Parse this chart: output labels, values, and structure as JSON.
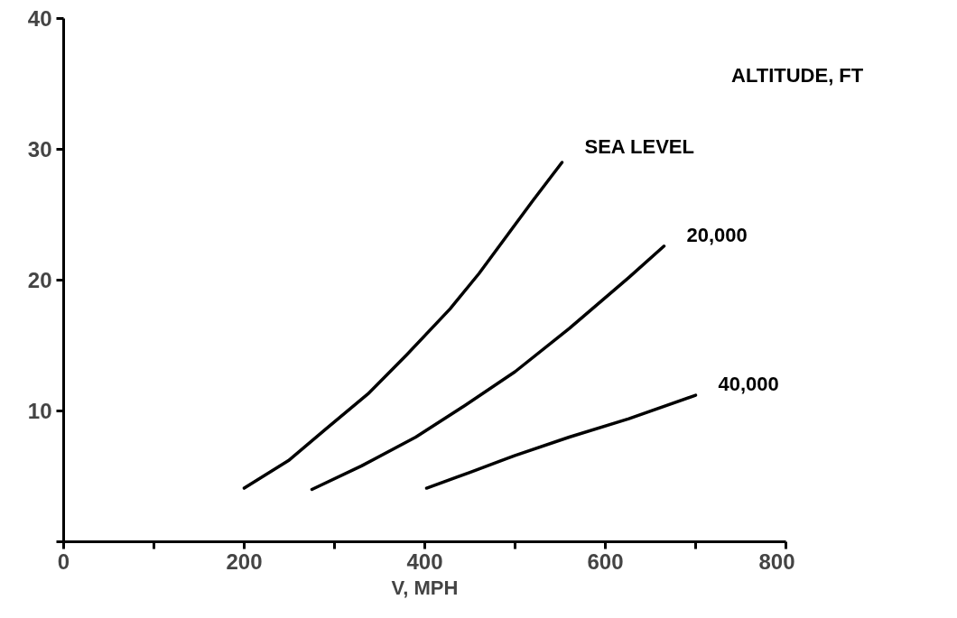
{
  "chart_data": {
    "type": "line",
    "xlabel": "V, MPH",
    "legend_title": "ALTITUDE, FT",
    "xlim": [
      0,
      800
    ],
    "ylim": [
      0,
      40
    ],
    "xticks": [
      0,
      {
        "value": 100,
        "label": null
      },
      200,
      {
        "value": 300,
        "label": null
      },
      400,
      {
        "value": 500,
        "label": null
      },
      600,
      {
        "value": 700,
        "label": null
      },
      800
    ],
    "yticks": [
      {
        "value": 0,
        "label": null
      },
      10,
      20,
      30,
      40
    ],
    "grid": false,
    "line_style": "solid",
    "marker": "none",
    "series": [
      {
        "name": "SEA LEVEL",
        "color": "#000000",
        "x": [
          200,
          249,
          290,
          337,
          380,
          428,
          460,
          491,
          520,
          552
        ],
        "values": [
          4.1,
          6.2,
          8.6,
          11.3,
          14.3,
          17.8,
          20.5,
          23.4,
          26.1,
          29.0
        ]
      },
      {
        "name": "20,000",
        "color": "#000000",
        "x": [
          275,
          330,
          390,
          444,
          500,
          560,
          626,
          665
        ],
        "values": [
          4.0,
          5.8,
          8.0,
          10.4,
          13.0,
          16.3,
          20.2,
          22.6
        ]
      },
      {
        "name": "40,000",
        "color": "#000000",
        "x": [
          402,
          450,
          500,
          560,
          626,
          700
        ],
        "values": [
          4.1,
          5.3,
          6.6,
          8.0,
          9.4,
          11.2
        ]
      }
    ]
  }
}
